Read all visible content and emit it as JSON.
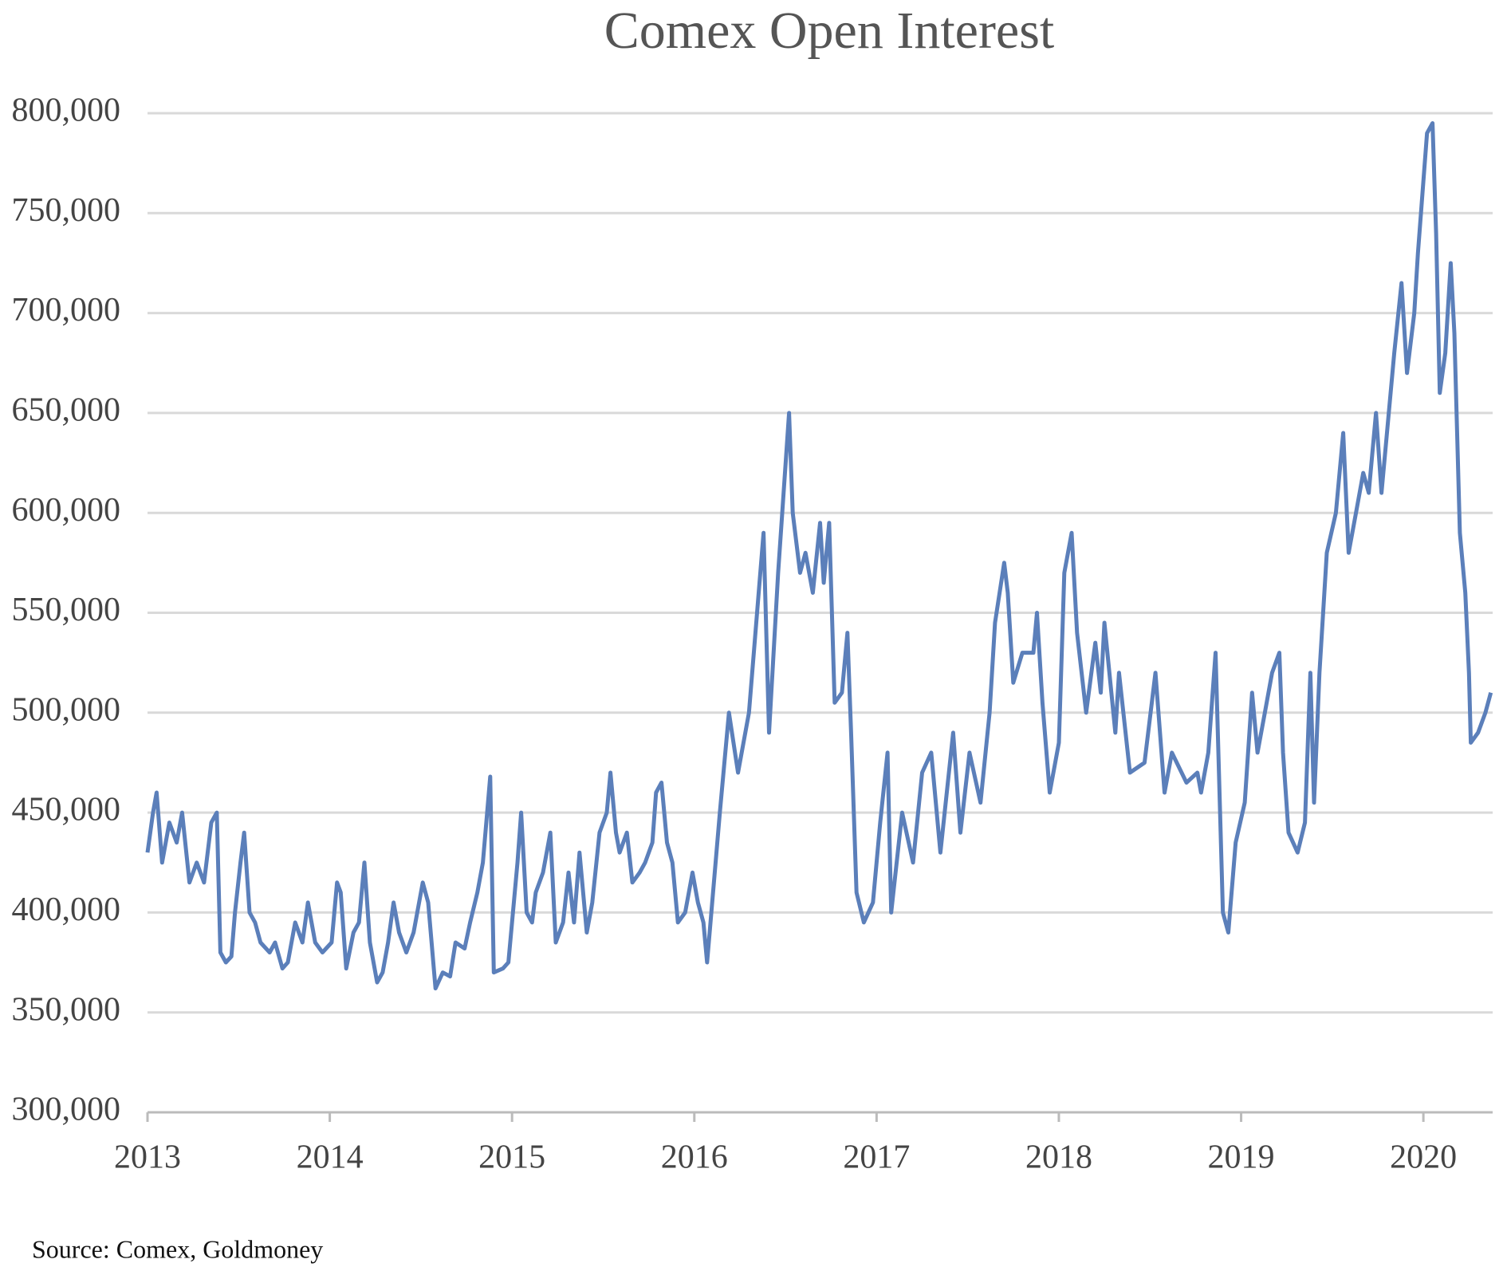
{
  "chart_data": {
    "type": "line",
    "title": "Comex Open Interest",
    "source": "Source: Comex, Goldmoney",
    "color": "#5b7fba",
    "grid": true,
    "xlim": [
      2013,
      2020.38
    ],
    "xticks": [
      2013,
      2014,
      2015,
      2016,
      2017,
      2018,
      2019,
      2020
    ],
    "ylim": [
      300000,
      800000
    ],
    "yticks": [
      {
        "value": 300000,
        "label": "300,000"
      },
      {
        "value": 350000,
        "label": "350,000"
      },
      {
        "value": 400000,
        "label": "400,000"
      },
      {
        "value": 450000,
        "label": "450,000"
      },
      {
        "value": 500000,
        "label": "500,000"
      },
      {
        "value": 550000,
        "label": "550,000"
      },
      {
        "value": 600000,
        "label": "600,000"
      },
      {
        "value": 650000,
        "label": "650,000"
      },
      {
        "value": 700000,
        "label": "700,000"
      },
      {
        "value": 750000,
        "label": "750,000"
      },
      {
        "value": 800000,
        "label": "800,000"
      }
    ],
    "x": [
      2013,
      2013.03,
      2013.05,
      2013.08,
      2013.12,
      2013.16,
      2013.19,
      2013.23,
      2013.27,
      2013.31,
      2013.35,
      2013.38,
      2013.4,
      2013.43,
      2013.46,
      2013.48,
      2013.51,
      2013.53,
      2013.56,
      2013.59,
      2013.62,
      2013.67,
      2013.7,
      2013.74,
      2013.77,
      2013.81,
      2013.85,
      2013.88,
      2013.92,
      2013.96,
      2014.01,
      2014.04,
      2014.06,
      2014.09,
      2014.13,
      2014.16,
      2014.19,
      2014.22,
      2014.26,
      2014.29,
      2014.32,
      2014.35,
      2014.38,
      2014.42,
      2014.46,
      2014.51,
      2014.54,
      2014.58,
      2014.62,
      2014.66,
      2014.69,
      2014.74,
      2014.77,
      2014.81,
      2014.84,
      2014.88,
      2014.9,
      2014.95,
      2014.98,
      2015.03,
      2015.05,
      2015.08,
      2015.11,
      2015.13,
      2015.17,
      2015.21,
      2015.24,
      2015.28,
      2015.31,
      2015.34,
      2015.37,
      2015.41,
      2015.44,
      2015.48,
      2015.52,
      2015.54,
      2015.57,
      2015.59,
      2015.63,
      2015.66,
      2015.7,
      2015.73,
      2015.77,
      2015.79,
      2015.82,
      2015.85,
      2015.88,
      2015.91,
      2015.95,
      2015.99,
      2016.02,
      2016.05,
      2016.07,
      2016.14,
      2016.19,
      2016.24,
      2016.3,
      2016.38,
      2016.41,
      2016.46,
      2016.52,
      2016.54,
      2016.58,
      2016.61,
      2016.65,
      2016.69,
      2016.71,
      2016.74,
      2016.77,
      2016.81,
      2016.84,
      2016.86,
      2016.89,
      2016.93,
      2016.98,
      2017.02,
      2017.06,
      2017.08,
      2017.14,
      2017.2,
      2017.25,
      2017.3,
      2017.35,
      2017.42,
      2017.46,
      2017.51,
      2017.57,
      2017.62,
      2017.65,
      2017.7,
      2017.72,
      2017.75,
      2017.8,
      2017.86,
      2017.88,
      2017.91,
      2017.95,
      2018,
      2018.03,
      2018.07,
      2018.1,
      2018.15,
      2018.2,
      2018.23,
      2018.25,
      2018.31,
      2018.33,
      2018.39,
      2018.47,
      2018.53,
      2018.58,
      2018.62,
      2018.7,
      2018.76,
      2018.78,
      2018.82,
      2018.86,
      2018.9,
      2018.93,
      2018.97,
      2019.02,
      2019.06,
      2019.09,
      2019.13,
      2019.17,
      2019.21,
      2019.23,
      2019.26,
      2019.31,
      2019.35,
      2019.38,
      2019.4,
      2019.43,
      2019.47,
      2019.52,
      2019.56,
      2019.59,
      2019.63,
      2019.67,
      2019.7,
      2019.74,
      2019.77,
      2019.84,
      2019.88,
      2019.91,
      2019.95,
      2019.97,
      2020.02,
      2020.05,
      2020.07,
      2020.09,
      2020.12,
      2020.15,
      2020.17,
      2020.2,
      2020.23,
      2020.25,
      2020.26,
      2020.3,
      2020.34,
      2020.37
    ],
    "values": [
      430000,
      450000,
      460000,
      425000,
      445000,
      435000,
      450000,
      415000,
      425000,
      415000,
      445000,
      450000,
      380000,
      375000,
      378000,
      400000,
      425000,
      440000,
      400000,
      395000,
      385000,
      380000,
      385000,
      372000,
      375000,
      395000,
      385000,
      405000,
      385000,
      380000,
      385000,
      415000,
      410000,
      372000,
      390000,
      395000,
      425000,
      385000,
      365000,
      370000,
      385000,
      405000,
      390000,
      380000,
      390000,
      415000,
      405000,
      362000,
      370000,
      368000,
      385000,
      382000,
      395000,
      410000,
      425000,
      468000,
      370000,
      372000,
      375000,
      425000,
      450000,
      400000,
      395000,
      410000,
      420000,
      440000,
      385000,
      395000,
      420000,
      395000,
      430000,
      390000,
      405000,
      440000,
      450000,
      470000,
      440000,
      430000,
      440000,
      415000,
      420000,
      425000,
      435000,
      460000,
      465000,
      435000,
      425000,
      395000,
      400000,
      420000,
      405000,
      395000,
      375000,
      450000,
      500000,
      470000,
      500000,
      590000,
      490000,
      570000,
      650000,
      600000,
      570000,
      580000,
      560000,
      595000,
      565000,
      595000,
      505000,
      510000,
      540000,
      490000,
      410000,
      395000,
      405000,
      445000,
      480000,
      400000,
      450000,
      425000,
      470000,
      480000,
      430000,
      490000,
      440000,
      480000,
      455000,
      500000,
      545000,
      575000,
      560000,
      515000,
      530000,
      530000,
      550000,
      505000,
      460000,
      485000,
      570000,
      590000,
      540000,
      500000,
      535000,
      510000,
      545000,
      490000,
      520000,
      470000,
      475000,
      520000,
      460000,
      480000,
      465000,
      470000,
      460000,
      480000,
      530000,
      400000,
      390000,
      435000,
      455000,
      510000,
      480000,
      500000,
      520000,
      530000,
      480000,
      440000,
      430000,
      445000,
      520000,
      455000,
      520000,
      580000,
      600000,
      640000,
      580000,
      600000,
      620000,
      610000,
      650000,
      610000,
      680000,
      715000,
      670000,
      700000,
      730000,
      790000,
      795000,
      740000,
      660000,
      680000,
      725000,
      690000,
      590000,
      560000,
      520000,
      485000,
      490000,
      500000,
      510000
    ]
  }
}
